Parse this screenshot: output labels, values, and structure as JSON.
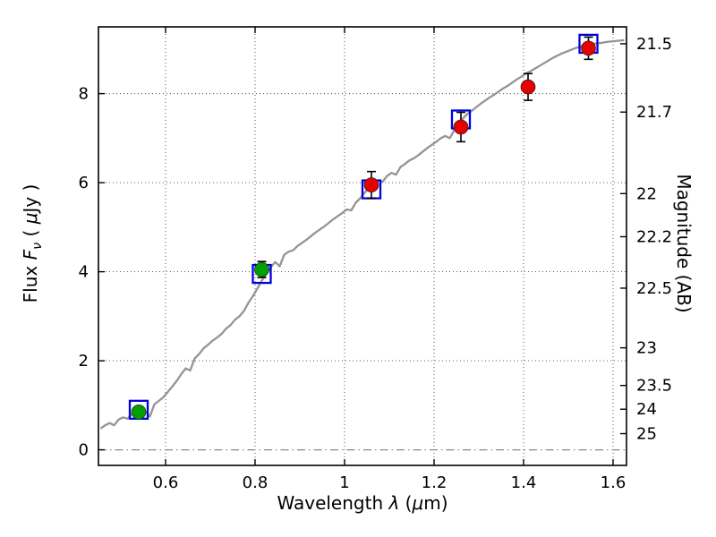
{
  "chart_data": {
    "type": "line",
    "title": "",
    "xlabel": "Wavelength λ (μm)",
    "ylabel": "Flux Fν ( μJy )",
    "ylabel_right": "Magnitude (AB)",
    "xlabel_parts": {
      "prefix": "Wavelength ",
      "symbol": "λ",
      "mid": " (",
      "unit": "μ",
      "suffix": "m)"
    },
    "ylabel_left_parts": {
      "prefix": "Flux  ",
      "symbol": "F",
      "sub": "ν",
      "mid": " ( ",
      "unit": "μ",
      "suffix": "Jy )"
    },
    "xlim": [
      0.45,
      1.63
    ],
    "ylim": [
      -0.35,
      9.5
    ],
    "x_ticks": [
      0.6,
      0.8,
      1,
      1.2,
      1.4,
      1.6
    ],
    "y_ticks_left": [
      0,
      2,
      4,
      6,
      8
    ],
    "y_ticks_right": [
      21.5,
      21.7,
      22,
      22.2,
      22.5,
      23,
      23.5,
      24,
      25
    ],
    "magnitude_zeropoint": 23.9,
    "grid": "dotted",
    "hline_dashdot": 0,
    "colors": {
      "spectrum": "#949494",
      "model_square": "#0000dd",
      "point_green": "#00a000",
      "point_red": "#e60000",
      "errorbar": "#000000"
    },
    "series": [
      {
        "name": "model-spectrum",
        "type": "line",
        "color": "#949494",
        "x": [
          0.455,
          0.465,
          0.475,
          0.485,
          0.495,
          0.505,
          0.515,
          0.525,
          0.535,
          0.545,
          0.555,
          0.565,
          0.575,
          0.585,
          0.595,
          0.605,
          0.615,
          0.625,
          0.635,
          0.645,
          0.655,
          0.665,
          0.675,
          0.685,
          0.695,
          0.705,
          0.715,
          0.725,
          0.735,
          0.745,
          0.755,
          0.765,
          0.775,
          0.785,
          0.795,
          0.805,
          0.815,
          0.825,
          0.835,
          0.845,
          0.855,
          0.865,
          0.875,
          0.885,
          0.895,
          0.905,
          0.915,
          0.925,
          0.935,
          0.945,
          0.955,
          0.965,
          0.975,
          0.985,
          0.995,
          1.005,
          1.015,
          1.025,
          1.035,
          1.045,
          1.055,
          1.065,
          1.075,
          1.085,
          1.095,
          1.105,
          1.115,
          1.125,
          1.135,
          1.145,
          1.155,
          1.165,
          1.175,
          1.185,
          1.195,
          1.205,
          1.215,
          1.225,
          1.235,
          1.245,
          1.255,
          1.265,
          1.275,
          1.285,
          1.295,
          1.305,
          1.315,
          1.325,
          1.335,
          1.345,
          1.355,
          1.365,
          1.375,
          1.385,
          1.395,
          1.405,
          1.415,
          1.425,
          1.435,
          1.445,
          1.455,
          1.465,
          1.475,
          1.485,
          1.495,
          1.505,
          1.515,
          1.525,
          1.535,
          1.545,
          1.555,
          1.565,
          1.575,
          1.585,
          1.595,
          1.605,
          1.615,
          1.625
        ],
        "y": [
          0.48,
          0.55,
          0.6,
          0.55,
          0.68,
          0.73,
          0.7,
          0.8,
          0.83,
          0.9,
          0.86,
          0.75,
          1.02,
          1.1,
          1.18,
          1.3,
          1.42,
          1.55,
          1.7,
          1.83,
          1.78,
          2.05,
          2.15,
          2.28,
          2.36,
          2.45,
          2.52,
          2.6,
          2.72,
          2.8,
          2.92,
          3.0,
          3.12,
          3.3,
          3.45,
          3.62,
          3.8,
          3.95,
          4.1,
          4.22,
          4.12,
          4.38,
          4.45,
          4.48,
          4.58,
          4.65,
          4.72,
          4.8,
          4.88,
          4.95,
          5.02,
          5.1,
          5.18,
          5.25,
          5.32,
          5.4,
          5.38,
          5.55,
          5.65,
          5.78,
          5.88,
          5.98,
          6.05,
          6.02,
          6.15,
          6.22,
          6.18,
          6.35,
          6.42,
          6.5,
          6.55,
          6.62,
          6.7,
          6.78,
          6.85,
          6.92,
          7.0,
          7.05,
          7.0,
          7.18,
          7.28,
          7.45,
          7.55,
          7.62,
          7.7,
          7.78,
          7.85,
          7.92,
          7.98,
          8.05,
          8.12,
          8.18,
          8.25,
          8.32,
          8.38,
          8.45,
          8.5,
          8.56,
          8.62,
          8.68,
          8.74,
          8.8,
          8.85,
          8.9,
          8.94,
          8.98,
          9.02,
          9.05,
          9.08,
          9.1,
          9.12,
          9.13,
          9.14,
          9.16,
          9.17,
          9.18,
          9.19,
          9.2
        ]
      },
      {
        "name": "model-photometry",
        "type": "square-open",
        "color": "#0000dd",
        "points": [
          {
            "x": 0.54,
            "y": 0.9
          },
          {
            "x": 0.815,
            "y": 3.95
          },
          {
            "x": 1.06,
            "y": 5.85
          },
          {
            "x": 1.26,
            "y": 7.42
          },
          {
            "x": 1.545,
            "y": 9.12
          }
        ]
      },
      {
        "name": "observed-photometry",
        "type": "circle-errorbar",
        "points": [
          {
            "x": 0.54,
            "y": 0.85,
            "err": 0.12,
            "color": "#00a000"
          },
          {
            "x": 0.815,
            "y": 4.05,
            "err": 0.18,
            "color": "#00a000"
          },
          {
            "x": 1.06,
            "y": 5.95,
            "err": 0.3,
            "color": "#e60000"
          },
          {
            "x": 1.26,
            "y": 7.25,
            "err": 0.33,
            "color": "#e60000"
          },
          {
            "x": 1.41,
            "y": 8.15,
            "err": 0.3,
            "color": "#e60000"
          },
          {
            "x": 1.545,
            "y": 9.02,
            "err": 0.25,
            "color": "#e60000"
          }
        ]
      }
    ]
  }
}
